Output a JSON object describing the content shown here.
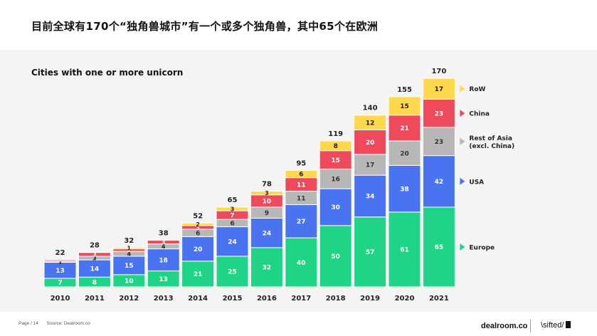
{
  "title": "目前全球有170个“独角兽城市”有一个或多个独角兽，其中65个在欧洲",
  "footer": {
    "page": "Page / 14",
    "source": "Source: Dealroom.co"
  },
  "logos": {
    "dealroom": "dealroom.co",
    "sifted": "\\sifted/"
  },
  "chart_data": {
    "type": "bar",
    "stacked": true,
    "title": "Cities with one or more unicorn",
    "categories": [
      "2010",
      "2011",
      "2012",
      "2013",
      "2014",
      "2015",
      "2016",
      "2017",
      "2018",
      "2019",
      "2020",
      "2021"
    ],
    "series": [
      {
        "name": "Europe",
        "color": "#1fd487",
        "values": [
          7,
          8,
          10,
          13,
          21,
          25,
          32,
          40,
          50,
          57,
          61,
          65
        ]
      },
      {
        "name": "USA",
        "color": "#4a73f2",
        "values": [
          13,
          14,
          15,
          18,
          20,
          24,
          24,
          27,
          30,
          34,
          38,
          42
        ]
      },
      {
        "name": "Rest of Asia\n(excl. China)",
        "color": "#b7b7b7",
        "values": [
          1,
          3,
          4,
          4,
          6,
          6,
          9,
          11,
          16,
          17,
          20,
          23
        ]
      },
      {
        "name": "China",
        "color": "#ef4a5b",
        "values": [
          1,
          3,
          2,
          3,
          3,
          7,
          10,
          11,
          15,
          20,
          21,
          23
        ]
      },
      {
        "name": "RoW",
        "color": "#ffd84d",
        "values": [
          0,
          0,
          1,
          0,
          2,
          3,
          3,
          6,
          8,
          12,
          15,
          17
        ]
      }
    ],
    "totals": [
      22,
      28,
      32,
      38,
      52,
      65,
      78,
      95,
      119,
      140,
      155,
      170
    ],
    "segment_labels": [
      [
        "7",
        "13",
        "1",
        "",
        ""
      ],
      [
        "8",
        "14",
        "3",
        "3",
        ""
      ],
      [
        "10",
        "15",
        "4",
        "2",
        "1"
      ],
      [
        "13",
        "18",
        "4",
        "3",
        ""
      ],
      [
        "21",
        "20",
        "6",
        "3",
        "2"
      ],
      [
        "25",
        "24",
        "6",
        "7",
        "3"
      ],
      [
        "32",
        "24",
        "9",
        "10",
        "3"
      ],
      [
        "40",
        "27",
        "11",
        "11",
        "6"
      ],
      [
        "50",
        "30",
        "16",
        "15",
        "8"
      ],
      [
        "57",
        "34",
        "17",
        "20",
        "12"
      ],
      [
        "61",
        "38",
        "20",
        "21",
        "15"
      ],
      [
        "65",
        "42",
        "23",
        "23",
        "17"
      ]
    ],
    "ylim": [
      0,
      170
    ],
    "xlabel": "",
    "ylabel": "",
    "legend": "right"
  }
}
